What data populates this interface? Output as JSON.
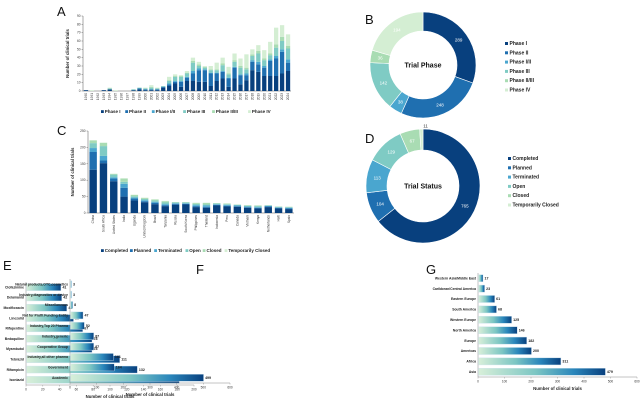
{
  "panel_letters": [
    "A",
    "B",
    "C",
    "D",
    "E",
    "F",
    "G"
  ],
  "palette": [
    "#08407e",
    "#1f6fb0",
    "#4aa6cf",
    "#7fcbc4",
    "#a9dcb3",
    "#d4eed3"
  ],
  "chart_data": [
    {
      "id": "A",
      "type": "bar",
      "stacked": true,
      "title": "",
      "xlabel": "",
      "ylabel": "Number of clinical trials",
      "ylim": [
        0,
        90
      ],
      "yticks": [
        0,
        10,
        20,
        30,
        40,
        50,
        60,
        70,
        80,
        90
      ],
      "categories": [
        "1990",
        "1991",
        "1992",
        "1993",
        "1994",
        "1995",
        "1996",
        "1997",
        "1998",
        "1999",
        "2000",
        "2001",
        "2002",
        "2003",
        "2004",
        "2005",
        "2006",
        "2007",
        "2008",
        "2009",
        "2010",
        "2011",
        "2012",
        "2013",
        "2014",
        "2015",
        "2016",
        "2017",
        "2018",
        "2019",
        "2020",
        "2021",
        "2022",
        "2023",
        "2024"
      ],
      "series": [
        {
          "name": "Phase I",
          "values": [
            1,
            0,
            0,
            1,
            2,
            0,
            0,
            0,
            1,
            2,
            1,
            1,
            1,
            4,
            6,
            9,
            5,
            12,
            12,
            11,
            11,
            6,
            12,
            15,
            5,
            15,
            8,
            13,
            25,
            23,
            18,
            18,
            18,
            21,
            24
          ]
        },
        {
          "name": "Phase II",
          "values": [
            0,
            0,
            0,
            0,
            0,
            0,
            0,
            0,
            0,
            1,
            1,
            1,
            1,
            1,
            2,
            2,
            6,
            4,
            9,
            14,
            14,
            15,
            9,
            8,
            10,
            13,
            11,
            6,
            10,
            9,
            10,
            18,
            21,
            26,
            10
          ]
        },
        {
          "name": "Phase I/II",
          "values": [
            0,
            0,
            0,
            0,
            0,
            0,
            0,
            0,
            0,
            0,
            0,
            0,
            0,
            0,
            1,
            1,
            1,
            1,
            3,
            2,
            1,
            1,
            1,
            1,
            1,
            1,
            1,
            2,
            2,
            3,
            2,
            2,
            3,
            3,
            4
          ]
        },
        {
          "name": "Phase III",
          "values": [
            0,
            0,
            0,
            0,
            1,
            0,
            0,
            0,
            1,
            1,
            1,
            2,
            1,
            1,
            3,
            5,
            5,
            4,
            10,
            3,
            2,
            3,
            3,
            7,
            4,
            6,
            8,
            5,
            5,
            10,
            7,
            5,
            10,
            10,
            13
          ]
        },
        {
          "name": "Phase II/III",
          "values": [
            0,
            0,
            0,
            0,
            0,
            0,
            0,
            0,
            0,
            0,
            0,
            1,
            0,
            0,
            1,
            1,
            1,
            1,
            2,
            2,
            1,
            1,
            1,
            2,
            1,
            2,
            2,
            2,
            2,
            3,
            2,
            2,
            4,
            5,
            3
          ]
        },
        {
          "name": "Phase IV",
          "values": [
            0,
            1,
            0,
            0,
            1,
            1,
            0,
            0,
            0,
            0,
            1,
            2,
            1,
            0,
            4,
            2,
            1,
            2,
            4,
            3,
            1,
            4,
            8,
            7,
            8,
            8,
            9,
            16,
            6,
            7,
            10,
            14,
            20,
            14,
            14
          ]
        }
      ],
      "legend": "bottom"
    },
    {
      "id": "B",
      "type": "pie",
      "donut": true,
      "center_label": "Trial Phase",
      "categories": [
        "Phase I",
        "Phase II",
        "Phase I/II",
        "Phase III",
        "Phase II/III",
        "Phase IV"
      ],
      "values": [
        289,
        248,
        38,
        142,
        36,
        194
      ],
      "legend": "right"
    },
    {
      "id": "C",
      "type": "bar",
      "stacked": true,
      "ylabel": "Number of clinical trials",
      "ylim": [
        0,
        250
      ],
      "yticks": [
        0,
        50,
        100,
        150,
        200,
        250
      ],
      "categories": [
        "China",
        "South Africa",
        "United States",
        "India",
        "Uganda",
        "United Kingdom",
        "Brazil",
        "Tanzania",
        "Russia",
        "South Korea",
        "Philippines",
        "Thailand",
        "Indonesia",
        "Peru",
        "Canada",
        "Vietnam",
        "Kenya",
        "Netherlands",
        "Haiti",
        "Spain"
      ],
      "series": [
        {
          "name": "Completed",
          "values": [
            132,
            152,
            97,
            50,
            38,
            33,
            27,
            21,
            25,
            26,
            18,
            16,
            23,
            20,
            19,
            16,
            14,
            18,
            14,
            12
          ]
        },
        {
          "name": "Planned",
          "values": [
            54,
            8,
            8,
            27,
            6,
            3,
            4,
            3,
            3,
            2,
            3,
            3,
            2,
            2,
            2,
            2,
            2,
            2,
            2,
            2
          ]
        },
        {
          "name": "Terminated",
          "values": [
            12,
            14,
            4,
            12,
            3,
            3,
            3,
            3,
            2,
            2,
            3,
            4,
            2,
            3,
            2,
            2,
            2,
            2,
            1,
            2
          ]
        },
        {
          "name": "Open",
          "values": [
            15,
            30,
            8,
            6,
            4,
            4,
            4,
            5,
            2,
            2,
            4,
            3,
            2,
            2,
            2,
            2,
            3,
            1,
            2,
            2
          ]
        },
        {
          "name": "Closed",
          "values": [
            8,
            10,
            2,
            10,
            4,
            3,
            3,
            4,
            1,
            1,
            3,
            5,
            1,
            2,
            1,
            2,
            2,
            1,
            1,
            1
          ]
        },
        {
          "name": "Temporarily Closed",
          "values": [
            1,
            1,
            1,
            1,
            1,
            1,
            1,
            1,
            0,
            0,
            0,
            0,
            0,
            0,
            0,
            0,
            0,
            0,
            0,
            0
          ]
        }
      ],
      "legend": "bottom"
    },
    {
      "id": "D",
      "type": "pie",
      "donut": true,
      "center_label": "Trial Status",
      "categories": [
        "Completed",
        "Planned",
        "Terminated",
        "Open",
        "Closed",
        "Temporarily Closed"
      ],
      "values": [
        765,
        104,
        113,
        129,
        67,
        11
      ],
      "legend": "right"
    },
    {
      "id": "E",
      "type": "bar",
      "orientation": "horizontal",
      "xlabel": "Number of clinical trials",
      "xlim": [
        0,
        200
      ],
      "xticks": [
        0,
        20,
        40,
        60,
        80,
        100,
        120,
        140,
        160,
        180,
        200
      ],
      "categories": [
        "Clofazimine",
        "Delamanid",
        "Moxifloxacin",
        "Linezolid",
        "Rifapentine",
        "Bedaquiline",
        "Myambutol",
        "Tebrazid",
        "Rifampicin",
        "Isoniazid"
      ],
      "values": [
        41,
        42,
        48,
        56,
        67,
        78,
        78,
        111,
        132,
        182
      ]
    },
    {
      "id": "F",
      "type": "bar",
      "orientation": "horizontal",
      "xlabel": "Number of clinical trials",
      "xlim": [
        0,
        600
      ],
      "xticks": [
        0,
        100,
        200,
        300,
        400,
        500,
        600
      ],
      "categories": [
        "Natural products,OTC,cosmetics",
        "Industry,diagnostics or device",
        "Miscellaneous",
        "Not for Profit Funding Entity",
        "Industry,Top 20 Pharma",
        "Industry,generic",
        "Cooperative Group",
        "Industry,all other pharma",
        "Government",
        "Academic"
      ],
      "values": [
        3,
        3,
        8,
        47,
        52,
        87,
        87,
        161,
        164,
        499
      ]
    },
    {
      "id": "G",
      "type": "bar",
      "orientation": "horizontal",
      "xlabel": "Number of clinical trials",
      "xlim": [
        0,
        600
      ],
      "xticks": [
        0,
        100,
        200,
        300,
        400,
        500,
        600
      ],
      "categories": [
        "Western Asia/Middle East",
        "Caribbean/Central America",
        "Eastern Europe",
        "South America",
        "Western Europe",
        "North America",
        "Europe",
        "Americas",
        "Africa",
        "Asia"
      ],
      "values": [
        17,
        23,
        61,
        68,
        125,
        146,
        182,
        200,
        311,
        479
      ]
    }
  ]
}
